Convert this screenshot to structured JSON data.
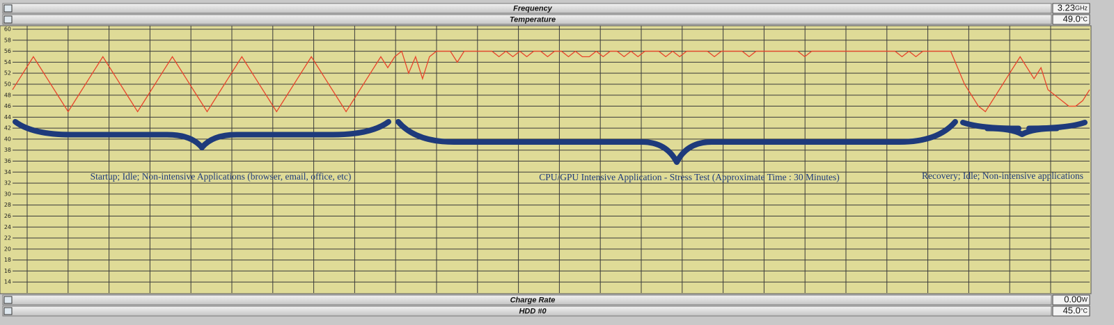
{
  "panels": {
    "top": [
      {
        "label": "Frequency",
        "value": "3.23",
        "unit": "GHz"
      },
      {
        "label": "Temperature",
        "value": "49.0",
        "unit": "°C"
      }
    ],
    "bottom": [
      {
        "label": "Charge Rate",
        "value": "0.00",
        "unit": "W"
      },
      {
        "label": "HDD #0",
        "value": "45.0",
        "unit": "°C"
      }
    ]
  },
  "chart_data": {
    "type": "line",
    "color": "#e8432b",
    "grid": true,
    "ylim": [
      12,
      60
    ],
    "yticks": [
      14,
      16,
      18,
      20,
      22,
      24,
      26,
      28,
      30,
      32,
      34,
      36,
      38,
      40,
      42,
      44,
      46,
      48,
      50,
      52,
      54,
      56,
      58,
      60
    ],
    "values": [
      49,
      51,
      53,
      55,
      53,
      51,
      49,
      47,
      45,
      47,
      49,
      51,
      53,
      55,
      53,
      51,
      49,
      47,
      45,
      47,
      49,
      51,
      53,
      55,
      53,
      51,
      49,
      47,
      45,
      47,
      49,
      51,
      53,
      55,
      53,
      51,
      49,
      47,
      45,
      47,
      49,
      51,
      53,
      55,
      53,
      51,
      49,
      47,
      45,
      47,
      49,
      51,
      53,
      55,
      53,
      55,
      56,
      52,
      55,
      51,
      55,
      56,
      56,
      56,
      54,
      56,
      56,
      56,
      56,
      56,
      55,
      56,
      55,
      56,
      55,
      56,
      56,
      55,
      56,
      56,
      55,
      56,
      55,
      55,
      56,
      55,
      56,
      56,
      55,
      56,
      55,
      56,
      56,
      56,
      55,
      56,
      55,
      56,
      56,
      56,
      56,
      55,
      56,
      56,
      56,
      56,
      55,
      56,
      56,
      56,
      56,
      56,
      56,
      56,
      55,
      56,
      56,
      56,
      56,
      56,
      56,
      56,
      56,
      56,
      56,
      56,
      56,
      56,
      55,
      56,
      55,
      56,
      56,
      56,
      56,
      56,
      53,
      50,
      48,
      46,
      45,
      47,
      49,
      51,
      53,
      55,
      53,
      51,
      53,
      49,
      48,
      47,
      46,
      46,
      47,
      49
    ],
    "annotations": [
      "Startup; Idle; Non-intensive Applications (browser, email, office, etc)",
      "CPU/GPU Intensive Application - Stress Test (Approximate Time : 30 Minutes)",
      "Recovery; Idle; Non-intensive applications"
    ]
  }
}
